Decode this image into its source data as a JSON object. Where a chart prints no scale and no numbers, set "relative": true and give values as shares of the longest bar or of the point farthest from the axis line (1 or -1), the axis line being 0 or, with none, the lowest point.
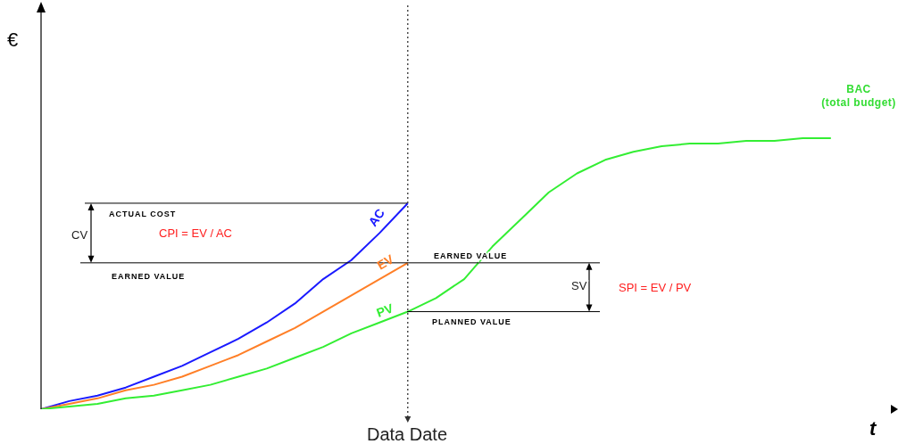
{
  "chart_data": {
    "type": "line",
    "relative": true,
    "xlabel": "t",
    "ylabel": "€",
    "categories": [
      null,
      null,
      null,
      null,
      null,
      null,
      null,
      null,
      null,
      null,
      null,
      null,
      null,
      null,
      null,
      null,
      null,
      null,
      null,
      null,
      null,
      null,
      null,
      null,
      null,
      null,
      null,
      null,
      null,
      null,
      null
    ],
    "series": [
      {
        "name": "AC",
        "color": "#1a1aff",
        "values": [
          0,
          0.03,
          0.05,
          0.08,
          0.12,
          0.16,
          0.21,
          0.26,
          0.32,
          0.39,
          0.48,
          0.55,
          0.65,
          0.76,
          null,
          null,
          null,
          null,
          null,
          null,
          null,
          null,
          null,
          null,
          null,
          null,
          null,
          null,
          null,
          null,
          null
        ]
      },
      {
        "name": "EV",
        "color": "#ff7f27",
        "values": [
          0,
          0.02,
          0.04,
          0.07,
          0.09,
          0.12,
          0.16,
          0.2,
          0.25,
          0.3,
          0.36,
          0.42,
          0.48,
          0.54,
          null,
          null,
          null,
          null,
          null,
          null,
          null,
          null,
          null,
          null,
          null,
          null,
          null,
          null,
          null,
          null,
          null
        ]
      },
      {
        "name": "PV",
        "color": "#33ee33",
        "values": [
          0,
          0.01,
          0.02,
          0.04,
          0.05,
          0.07,
          0.09,
          0.12,
          0.15,
          0.19,
          0.23,
          0.28,
          0.32,
          0.36,
          0.41,
          0.48,
          0.6,
          0.7,
          0.8,
          0.87,
          0.92,
          0.95,
          0.97,
          0.98,
          0.98,
          0.99,
          0.99,
          1,
          1,
          null,
          null
        ]
      }
    ],
    "ref_lines": [
      {
        "axis": "y",
        "value": 0.76,
        "color": "#000000"
      },
      {
        "axis": "y",
        "value": 0.54,
        "color": "#000000"
      },
      {
        "axis": "y",
        "value": 0.36,
        "color": "#000000"
      }
    ],
    "annotations": [
      "ACTUAL COST",
      "EARNED VALUE",
      "EARNED VALUE",
      "PLANNED VALUE",
      "CV",
      "SV",
      "CPI = EV / AC",
      "SPI = EV / PV",
      "BAC\n(total budget)",
      "Data Date"
    ],
    "grid": false,
    "legend": false,
    "marker": "none",
    "line_style": "solid"
  }
}
